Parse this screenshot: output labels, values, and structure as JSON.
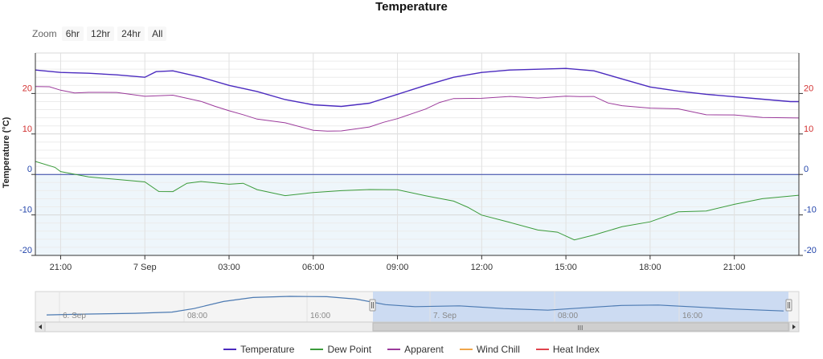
{
  "title": "Temperature",
  "zoom": {
    "label": "Zoom",
    "buttons": [
      "6hr",
      "12hr",
      "24hr",
      "All"
    ]
  },
  "navigator": {
    "labels": [
      "6. Sep",
      "08:00",
      "16:00",
      "7. Sep",
      "08:00",
      "16:00"
    ],
    "scroll_grip": "III"
  },
  "chart_data": {
    "type": "line",
    "title": "Temperature",
    "xlabel": "",
    "ylabel": "Temperature (°C)",
    "ylim": [
      -20,
      30
    ],
    "y_ticks": [
      20,
      10,
      0,
      -10,
      -20
    ],
    "x_ticks": [
      {
        "h": 21,
        "label": "21:00"
      },
      {
        "h": 24,
        "label": "7 Sep"
      },
      {
        "h": 27,
        "label": "03:00"
      },
      {
        "h": 30,
        "label": "06:00"
      },
      {
        "h": 33,
        "label": "09:00"
      },
      {
        "h": 36,
        "label": "12:00"
      },
      {
        "h": 39,
        "label": "15:00"
      },
      {
        "h": 42,
        "label": "18:00"
      },
      {
        "h": 45,
        "label": "21:00"
      }
    ],
    "x_range": [
      20.1,
      47.3
    ],
    "grid": true,
    "legend_position": "bottom",
    "series": [
      {
        "name": "Temperature",
        "color": "#4b2bbf",
        "points": [
          [
            20.1,
            25.8
          ],
          [
            21.0,
            25.2
          ],
          [
            22.0,
            25.0
          ],
          [
            23.0,
            24.6
          ],
          [
            24.0,
            24.0
          ],
          [
            24.4,
            25.4
          ],
          [
            25.0,
            25.6
          ],
          [
            26.0,
            24.0
          ],
          [
            27.0,
            22.0
          ],
          [
            28.0,
            20.5
          ],
          [
            29.0,
            18.5
          ],
          [
            30.0,
            17.2
          ],
          [
            31.0,
            16.8
          ],
          [
            32.0,
            17.6
          ],
          [
            33.0,
            19.8
          ],
          [
            34.0,
            22.0
          ],
          [
            35.0,
            24.0
          ],
          [
            36.0,
            25.2
          ],
          [
            37.0,
            25.8
          ],
          [
            38.0,
            26.0
          ],
          [
            39.0,
            26.2
          ],
          [
            40.0,
            25.6
          ],
          [
            41.0,
            23.6
          ],
          [
            42.0,
            21.6
          ],
          [
            43.0,
            20.6
          ],
          [
            44.0,
            19.8
          ],
          [
            45.0,
            19.2
          ],
          [
            46.0,
            18.6
          ],
          [
            47.0,
            18.0
          ],
          [
            47.3,
            18.0
          ]
        ]
      },
      {
        "name": "Dew Point",
        "color": "#3a9b3a",
        "points": [
          [
            20.1,
            3.0
          ],
          [
            20.8,
            2.0
          ],
          [
            21.0,
            0.5
          ],
          [
            22.0,
            -0.5
          ],
          [
            23.0,
            -1.2
          ],
          [
            24.0,
            -2.0
          ],
          [
            24.5,
            -4.0
          ],
          [
            25.0,
            -4.5
          ],
          [
            25.5,
            -2.0
          ],
          [
            26.0,
            -1.8
          ],
          [
            27.0,
            -2.5
          ],
          [
            27.5,
            -2.0
          ],
          [
            28.0,
            -4.0
          ],
          [
            29.0,
            -5.0
          ],
          [
            30.0,
            -4.6
          ],
          [
            31.0,
            -4.0
          ],
          [
            32.0,
            -3.6
          ],
          [
            33.0,
            -4.0
          ],
          [
            34.0,
            -5.0
          ],
          [
            35.0,
            -6.8
          ],
          [
            35.5,
            -8.0
          ],
          [
            36.0,
            -10.0
          ],
          [
            37.0,
            -12.0
          ],
          [
            38.0,
            -13.5
          ],
          [
            38.7,
            -14.5
          ],
          [
            39.3,
            -16.0
          ],
          [
            40.0,
            -15.0
          ],
          [
            41.0,
            -13.0
          ],
          [
            42.0,
            -11.5
          ],
          [
            43.0,
            -9.5
          ],
          [
            44.0,
            -8.8
          ],
          [
            45.0,
            -7.5
          ],
          [
            46.0,
            -6.0
          ],
          [
            47.3,
            -5.0
          ]
        ]
      },
      {
        "name": "Apparent",
        "color": "#9b3a9b",
        "points": [
          [
            20.1,
            21.5
          ],
          [
            20.6,
            21.8
          ],
          [
            21.0,
            20.8
          ],
          [
            21.5,
            20.0
          ],
          [
            22.0,
            20.5
          ],
          [
            23.0,
            20.0
          ],
          [
            24.0,
            19.5
          ],
          [
            25.0,
            19.5
          ],
          [
            26.0,
            18.0
          ],
          [
            26.5,
            17.0
          ],
          [
            27.0,
            15.5
          ],
          [
            27.5,
            15.0
          ],
          [
            28.0,
            13.5
          ],
          [
            29.0,
            12.8
          ],
          [
            30.0,
            11.0
          ],
          [
            30.5,
            10.5
          ],
          [
            31.0,
            11.0
          ],
          [
            32.0,
            11.5
          ],
          [
            32.5,
            13.0
          ],
          [
            33.0,
            13.8
          ],
          [
            34.0,
            16.0
          ],
          [
            34.5,
            18.0
          ],
          [
            35.0,
            18.5
          ],
          [
            36.0,
            19.0
          ],
          [
            37.0,
            19.2
          ],
          [
            38.0,
            18.8
          ],
          [
            39.0,
            19.5
          ],
          [
            39.5,
            19.0
          ],
          [
            40.0,
            19.5
          ],
          [
            40.5,
            17.5
          ],
          [
            41.0,
            17.0
          ],
          [
            42.0,
            16.5
          ],
          [
            43.0,
            16.0
          ],
          [
            44.0,
            15.0
          ],
          [
            45.0,
            14.5
          ],
          [
            46.0,
            14.2
          ],
          [
            47.0,
            14.0
          ],
          [
            47.3,
            13.8
          ]
        ]
      },
      {
        "name": "Wind Chill",
        "color": "#f0a64a",
        "points": []
      },
      {
        "name": "Heat Index",
        "color": "#e0444d",
        "points": []
      }
    ]
  }
}
